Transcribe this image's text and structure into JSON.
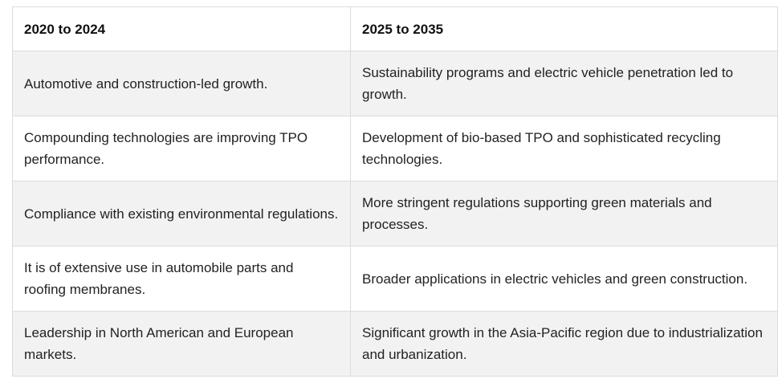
{
  "table": {
    "headers": [
      "2020 to 2024",
      "2025 to 2035"
    ],
    "rows": [
      [
        "Automotive and construction-led growth.",
        "Sustainability programs and electric vehicle penetration led to growth."
      ],
      [
        "Compounding technologies are improving TPO performance.",
        "Development of bio-based TPO and sophisticated recycling technologies."
      ],
      [
        "Compliance with existing environmental regulations.",
        "More stringent regulations supporting green materials and processes."
      ],
      [
        "It is of extensive use in automobile parts and roofing membranes.",
        "Broader applications in electric vehicles and green construction."
      ],
      [
        "Leadership in North American and European markets.",
        "Significant growth in the Asia-Pacific region due to industrialization and urbanization."
      ]
    ]
  }
}
